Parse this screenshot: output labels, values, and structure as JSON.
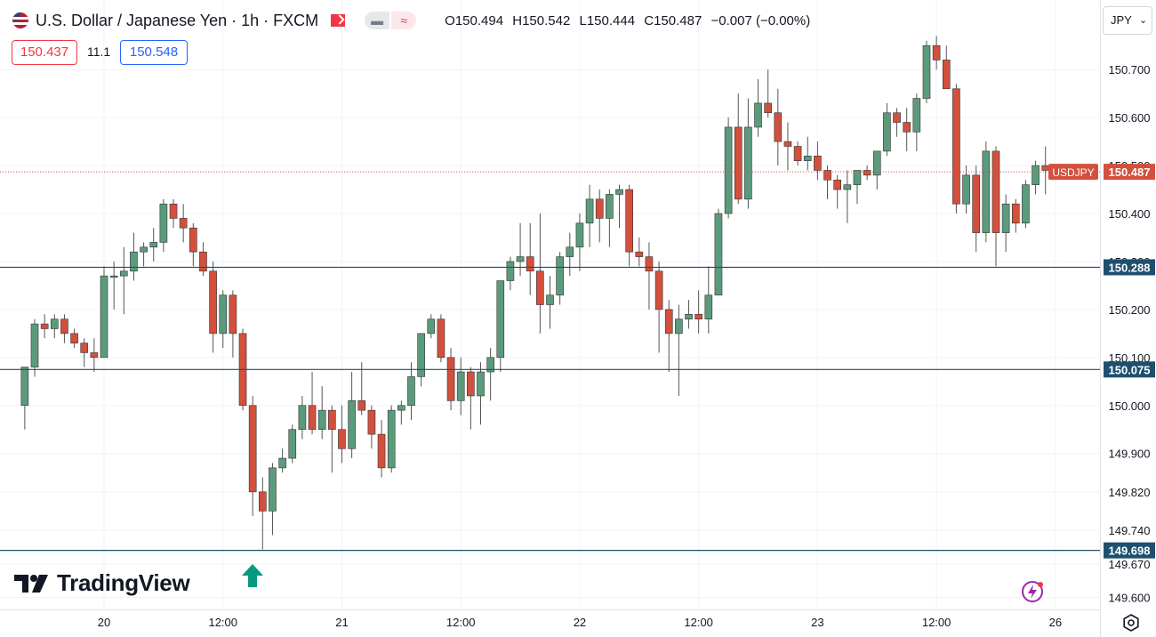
{
  "header": {
    "title": "U.S. Dollar / Japanese Yen · 1h · FXCM",
    "ohlc": {
      "open_label": "O",
      "open": "150.494",
      "high_label": "H",
      "high": "150.542",
      "low_label": "L",
      "low": "150.444",
      "close_label": "C",
      "close": "150.487",
      "change": "−0.007 (−0.00%)"
    },
    "pill_left": "▬",
    "pill_right": "≈"
  },
  "quotes": {
    "bid": "150.437",
    "spread": "11.1",
    "ask": "150.548"
  },
  "currency_button": {
    "label": "JPY",
    "chevron": "⌄"
  },
  "brand": {
    "name": "TradingView"
  },
  "colors": {
    "up": "#5b9b7c",
    "down": "#d2503c",
    "wick": "#555555",
    "grid": "#f0f3fa",
    "line": "#1e4f6f",
    "price_tag": "#d2503c",
    "arrow": "#089981",
    "bolt": "#9c27b0"
  },
  "chart_data": {
    "type": "candlestick",
    "symbol": "USDJPY",
    "timeframe": "1h",
    "ylim": [
      149.575,
      150.845
    ],
    "y_ticks": [
      "150.700",
      "150.600",
      "150.500",
      "150.400",
      "150.300",
      "150.200",
      "150.100",
      "150.000",
      "149.900",
      "149.820",
      "149.740",
      "149.670",
      "149.600"
    ],
    "x_ticks": [
      {
        "label": "20",
        "t": 8
      },
      {
        "label": "12:00",
        "t": 20
      },
      {
        "label": "21",
        "t": 32
      },
      {
        "label": "12:00",
        "t": 44
      },
      {
        "label": "22",
        "t": 56
      },
      {
        "label": "12:00",
        "t": 68
      },
      {
        "label": "23",
        "t": 80
      },
      {
        "label": "12:00",
        "t": 92
      },
      {
        "label": "26",
        "t": 104
      }
    ],
    "t_range": [
      -2.5,
      108.5
    ],
    "current_price": {
      "label": "USDJPY",
      "value": 150.487,
      "text": "150.487"
    },
    "levels": [
      {
        "value": 150.288,
        "text": "150.288"
      },
      {
        "value": 150.075,
        "text": "150.075"
      },
      {
        "value": 149.698,
        "text": "149.698"
      }
    ],
    "marker": {
      "type": "arrow-up",
      "t": 23
    },
    "candles": [
      [
        150.0,
        150.08,
        149.95,
        150.08
      ],
      [
        150.08,
        150.18,
        150.06,
        150.17
      ],
      [
        150.17,
        150.19,
        150.14,
        150.16
      ],
      [
        150.16,
        150.19,
        150.14,
        150.18
      ],
      [
        150.18,
        150.19,
        150.13,
        150.15
      ],
      [
        150.15,
        150.16,
        150.12,
        150.13
      ],
      [
        150.13,
        150.14,
        150.08,
        150.11
      ],
      [
        150.11,
        150.14,
        150.07,
        150.1
      ],
      [
        150.1,
        150.29,
        150.1,
        150.27
      ],
      [
        150.27,
        150.3,
        150.2,
        150.27
      ],
      [
        150.27,
        150.33,
        150.19,
        150.28
      ],
      [
        150.28,
        150.36,
        150.26,
        150.32
      ],
      [
        150.32,
        150.34,
        150.29,
        150.33
      ],
      [
        150.33,
        150.37,
        150.3,
        150.34
      ],
      [
        150.34,
        150.43,
        150.32,
        150.42
      ],
      [
        150.42,
        150.43,
        150.37,
        150.39
      ],
      [
        150.39,
        150.42,
        150.34,
        150.37
      ],
      [
        150.37,
        150.38,
        150.29,
        150.32
      ],
      [
        150.32,
        150.34,
        150.27,
        150.28
      ],
      [
        150.28,
        150.3,
        150.11,
        150.15
      ],
      [
        150.15,
        150.24,
        150.12,
        150.23
      ],
      [
        150.23,
        150.24,
        150.1,
        150.15
      ],
      [
        150.15,
        150.16,
        149.99,
        150.0
      ],
      [
        150.0,
        150.02,
        149.77,
        149.82
      ],
      [
        149.82,
        149.85,
        149.7,
        149.78
      ],
      [
        149.78,
        149.88,
        149.73,
        149.87
      ],
      [
        149.87,
        149.91,
        149.86,
        149.89
      ],
      [
        149.89,
        149.96,
        149.88,
        149.95
      ],
      [
        149.95,
        150.02,
        149.93,
        150.0
      ],
      [
        150.0,
        150.07,
        149.94,
        149.95
      ],
      [
        149.95,
        150.04,
        149.93,
        149.99
      ],
      [
        149.99,
        150.0,
        149.86,
        149.95
      ],
      [
        149.95,
        150.0,
        149.88,
        149.91
      ],
      [
        149.91,
        150.07,
        149.89,
        150.01
      ],
      [
        150.01,
        150.09,
        149.98,
        149.99
      ],
      [
        149.99,
        150.0,
        149.91,
        149.94
      ],
      [
        149.94,
        149.97,
        149.85,
        149.87
      ],
      [
        149.87,
        150.0,
        149.86,
        149.99
      ],
      [
        149.99,
        150.01,
        149.96,
        150.0
      ],
      [
        150.0,
        150.09,
        149.97,
        150.06
      ],
      [
        150.06,
        150.15,
        150.04,
        150.15
      ],
      [
        150.15,
        150.19,
        150.14,
        150.18
      ],
      [
        150.18,
        150.19,
        150.09,
        150.1
      ],
      [
        150.1,
        150.12,
        149.99,
        150.01
      ],
      [
        150.01,
        150.1,
        149.98,
        150.07
      ],
      [
        150.07,
        150.08,
        149.95,
        150.02
      ],
      [
        150.02,
        150.09,
        149.96,
        150.07
      ],
      [
        150.07,
        150.12,
        150.01,
        150.1
      ],
      [
        150.1,
        150.26,
        150.07,
        150.26
      ],
      [
        150.26,
        150.31,
        150.24,
        150.3
      ],
      [
        150.3,
        150.38,
        150.27,
        150.31
      ],
      [
        150.31,
        150.38,
        150.23,
        150.28
      ],
      [
        150.28,
        150.4,
        150.15,
        150.21
      ],
      [
        150.21,
        150.27,
        150.16,
        150.23
      ],
      [
        150.23,
        150.32,
        150.21,
        150.31
      ],
      [
        150.31,
        150.36,
        150.27,
        150.33
      ],
      [
        150.33,
        150.4,
        150.28,
        150.38
      ],
      [
        150.38,
        150.46,
        150.33,
        150.43
      ],
      [
        150.43,
        150.45,
        150.34,
        150.39
      ],
      [
        150.39,
        150.45,
        150.33,
        150.44
      ],
      [
        150.44,
        150.46,
        150.37,
        150.45
      ],
      [
        150.45,
        150.46,
        150.29,
        150.32
      ],
      [
        150.32,
        150.35,
        150.29,
        150.31
      ],
      [
        150.31,
        150.34,
        150.2,
        150.28
      ],
      [
        150.28,
        150.3,
        150.11,
        150.2
      ],
      [
        150.2,
        150.22,
        150.07,
        150.15
      ],
      [
        150.15,
        150.21,
        150.02,
        150.18
      ],
      [
        150.18,
        150.22,
        150.16,
        150.19
      ],
      [
        150.19,
        150.24,
        150.15,
        150.18
      ],
      [
        150.18,
        150.29,
        150.15,
        150.23
      ],
      [
        150.23,
        150.41,
        150.23,
        150.4
      ],
      [
        150.4,
        150.6,
        150.39,
        150.58
      ],
      [
        150.58,
        150.65,
        150.42,
        150.43
      ],
      [
        150.43,
        150.64,
        150.41,
        150.58
      ],
      [
        150.58,
        150.68,
        150.56,
        150.63
      ],
      [
        150.63,
        150.7,
        150.6,
        150.61
      ],
      [
        150.61,
        150.66,
        150.5,
        150.55
      ],
      [
        150.55,
        150.59,
        150.49,
        150.54
      ],
      [
        150.54,
        150.55,
        150.5,
        150.51
      ],
      [
        150.51,
        150.56,
        150.49,
        150.52
      ],
      [
        150.52,
        150.55,
        150.47,
        150.49
      ],
      [
        150.49,
        150.5,
        150.43,
        150.47
      ],
      [
        150.47,
        150.48,
        150.41,
        150.45
      ],
      [
        150.45,
        150.49,
        150.38,
        150.46
      ],
      [
        150.46,
        150.49,
        150.42,
        150.49
      ],
      [
        150.49,
        150.5,
        150.47,
        150.48
      ],
      [
        150.48,
        150.53,
        150.45,
        150.53
      ],
      [
        150.53,
        150.63,
        150.52,
        150.61
      ],
      [
        150.61,
        150.62,
        150.56,
        150.59
      ],
      [
        150.59,
        150.62,
        150.53,
        150.57
      ],
      [
        150.57,
        150.65,
        150.53,
        150.64
      ],
      [
        150.64,
        150.76,
        150.63,
        150.75
      ],
      [
        150.75,
        150.77,
        150.7,
        150.72
      ],
      [
        150.72,
        150.75,
        150.66,
        150.66
      ],
      [
        150.66,
        150.67,
        150.4,
        150.42
      ],
      [
        150.42,
        150.5,
        150.4,
        150.48
      ],
      [
        150.48,
        150.5,
        150.32,
        150.36
      ],
      [
        150.36,
        150.55,
        150.34,
        150.53
      ],
      [
        150.53,
        150.54,
        150.29,
        150.36
      ],
      [
        150.36,
        150.44,
        150.32,
        150.42
      ],
      [
        150.42,
        150.43,
        150.36,
        150.38
      ],
      [
        150.38,
        150.47,
        150.37,
        150.46
      ],
      [
        150.46,
        150.51,
        150.44,
        150.5
      ],
      [
        150.5,
        150.54,
        150.44,
        150.49
      ]
    ]
  }
}
